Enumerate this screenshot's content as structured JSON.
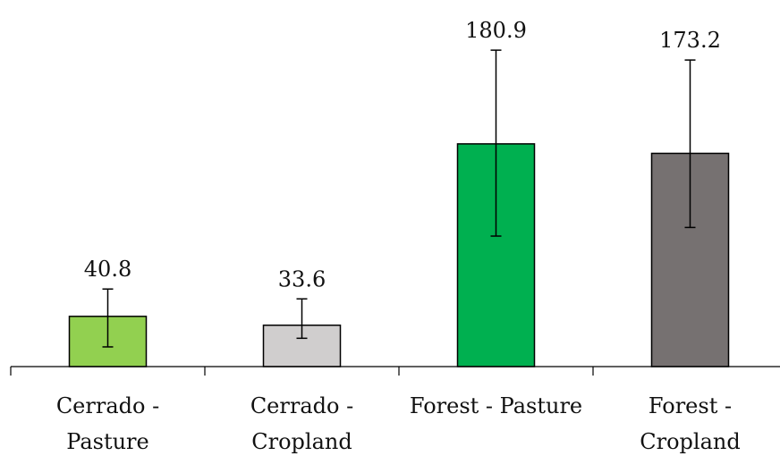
{
  "chart_data": {
    "type": "bar",
    "categories": [
      [
        "Cerrado -",
        "Pasture"
      ],
      [
        "Cerrado -",
        "Cropland"
      ],
      [
        "Forest - Pasture"
      ],
      [
        "Forest -",
        "Cropland"
      ]
    ],
    "values": [
      40.8,
      33.6,
      180.9,
      173.2
    ],
    "value_labels": [
      "40.8",
      "33.6",
      "180.9",
      "173.2"
    ],
    "error_low": [
      16,
      23,
      106,
      113
    ],
    "error_high": [
      63,
      55,
      257,
      249
    ],
    "colors": [
      "#92d050",
      "#d0cece",
      "#00b050",
      "#767171"
    ],
    "ylim": [
      0,
      260
    ],
    "title": "",
    "xlabel": "",
    "ylabel": "",
    "grid": false,
    "legend": "none"
  }
}
